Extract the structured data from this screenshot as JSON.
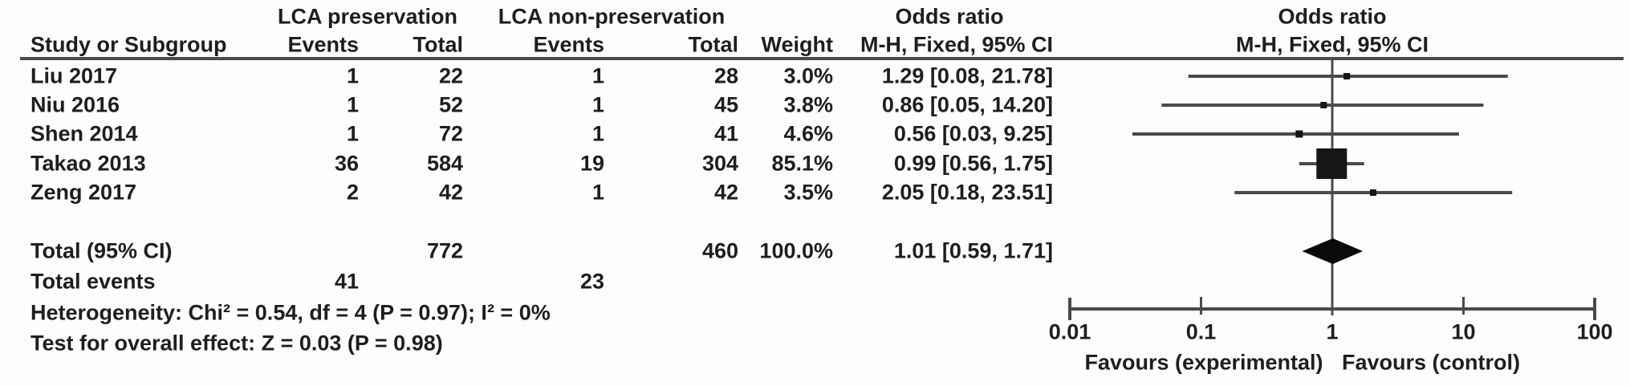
{
  "table": {
    "headers": {
      "group1": "LCA preservation",
      "group2": "LCA non-preservation",
      "odds_ratio_col": "Odds ratio",
      "odds_ratio_plot": "Odds ratio",
      "study": "Study or Subgroup",
      "events1": "Events",
      "total1": "Total",
      "events2": "Events",
      "total2": "Total",
      "weight": "Weight",
      "mh_fixed": "M-H, Fixed, 95% CI",
      "mh_fixed_plot": "M-H, Fixed, 95% CI"
    },
    "rows": [
      {
        "study": "Liu 2017",
        "events1": "1",
        "total1": "22",
        "events2": "1",
        "total2": "28",
        "weight": "3.0%",
        "or_text": "1.29 [0.08, 21.78]"
      },
      {
        "study": "Niu 2016",
        "events1": "1",
        "total1": "52",
        "events2": "1",
        "total2": "45",
        "weight": "3.8%",
        "or_text": "0.86 [0.05, 14.20]"
      },
      {
        "study": "Shen 2014",
        "events1": "1",
        "total1": "72",
        "events2": "1",
        "total2": "41",
        "weight": "4.6%",
        "or_text": "0.56 [0.03, 9.25]"
      },
      {
        "study": "Takao 2013",
        "events1": "36",
        "total1": "584",
        "events2": "19",
        "total2": "304",
        "weight": "85.1%",
        "or_text": "0.99 [0.56, 1.75]"
      },
      {
        "study": "Zeng 2017",
        "events1": "2",
        "total1": "42",
        "events2": "1",
        "total2": "42",
        "weight": "3.5%",
        "or_text": "2.05 [0.18, 23.51]"
      }
    ],
    "total_row": {
      "label": "Total (95% CI)",
      "total1": "772",
      "total2": "460",
      "weight": "100.0%",
      "or_text": "1.01 [0.59, 1.71]"
    },
    "total_events": {
      "label": "Total events",
      "events1": "41",
      "events2": "23"
    },
    "heterogeneity": "Heterogeneity: Chi² = 0.54, df = 4 (P = 0.97); I² = 0%",
    "overall_effect": "Test for overall effect: Z = 0.03 (P = 0.98)"
  },
  "chart_data": {
    "type": "scatter",
    "subtype": "forest-plot",
    "effect_measure": "Odds ratio, M-H, Fixed, 95% CI",
    "x_scale": "log10",
    "xlim": [
      0.01,
      100
    ],
    "x_ticks": [
      0.01,
      0.1,
      1,
      10,
      100
    ],
    "tick_labels": [
      "0.01",
      "0.1",
      "1",
      "10",
      "100"
    ],
    "studies": [
      {
        "name": "Liu 2017",
        "or": 1.29,
        "ci_low": 0.08,
        "ci_high": 21.78,
        "weight_pct": 3.0
      },
      {
        "name": "Niu 2016",
        "or": 0.86,
        "ci_low": 0.05,
        "ci_high": 14.2,
        "weight_pct": 3.8
      },
      {
        "name": "Shen 2014",
        "or": 0.56,
        "ci_low": 0.03,
        "ci_high": 9.25,
        "weight_pct": 4.6
      },
      {
        "name": "Takao 2013",
        "or": 0.99,
        "ci_low": 0.56,
        "ci_high": 1.75,
        "weight_pct": 85.1
      },
      {
        "name": "Zeng 2017",
        "or": 2.05,
        "ci_low": 0.18,
        "ci_high": 23.51,
        "weight_pct": 3.5
      }
    ],
    "pooled": {
      "or": 1.01,
      "ci_low": 0.59,
      "ci_high": 1.71
    },
    "axis_labels": {
      "left": "Favours (experimental)",
      "right": "Favours (control)"
    },
    "colors": {
      "text": "#1e1e1e",
      "lines": "#4a4a4a",
      "markers": "#161616",
      "diamond": "#0a0a0a"
    }
  }
}
